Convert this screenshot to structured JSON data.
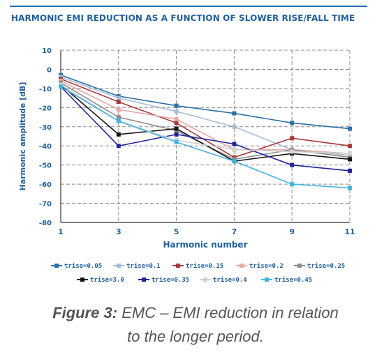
{
  "chart_data": {
    "type": "line",
    "title": "HARMONIC EMI REDUCTION AS A FUNCTION OF SLOWER RISE/FALL TIME",
    "xlabel": "Harmonic number",
    "ylabel": "Harmonic amplitude [dB]",
    "x": [
      1,
      3,
      5,
      7,
      9,
      11
    ],
    "x_ticks": [
      "1",
      "3",
      "5",
      "7",
      "9",
      "11"
    ],
    "xlim": [
      1,
      11
    ],
    "ylim": [
      -80,
      10
    ],
    "y_ticks": [
      "10",
      "0",
      "-10",
      "-20",
      "-30",
      "-40",
      "-50",
      "-60",
      "-70",
      "-80"
    ],
    "grid": true,
    "legend_position": "bottom",
    "series": [
      {
        "name": "trise=0.05",
        "color": "#2e6fa5",
        "values": [
          -3,
          -14,
          -19,
          -23,
          -28,
          -31
        ]
      },
      {
        "name": "trise=0.1",
        "color": "#a9bdd6",
        "values": [
          -4,
          -15,
          -22,
          -30,
          -42,
          -45
        ]
      },
      {
        "name": "trise=0.15",
        "color": "#a83a3a",
        "values": [
          -5,
          -17,
          -28,
          -46,
          -36,
          -40
        ]
      },
      {
        "name": "trise=0.2",
        "color": "#e5aaa5",
        "values": [
          -6,
          -21,
          -26,
          -42,
          -42,
          -44
        ]
      },
      {
        "name": "trise=0.25",
        "color": "#8d8d8d",
        "values": [
          -7,
          -25,
          -32,
          -47,
          -42,
          -46
        ]
      },
      {
        "name": "trise=3.0",
        "color": "#151515",
        "values": [
          -8,
          -34,
          -31,
          -48,
          -44,
          -47
        ]
      },
      {
        "name": "trise=0.35",
        "color": "#24249a",
        "values": [
          -9,
          -40,
          -34,
          -39,
          -50,
          -53
        ]
      },
      {
        "name": "trise=0.4",
        "color": "#d2d2d2",
        "values": [
          -8,
          -27,
          -37,
          -42,
          -43,
          -44
        ]
      },
      {
        "name": "trise=0.45",
        "color": "#41b3df",
        "values": [
          -9,
          -27,
          -38,
          -48,
          -60,
          -62
        ]
      }
    ]
  },
  "caption": {
    "label": "Figure 3:",
    "line1": " EMC – EMI reduction in relation",
    "line2": "to the longer period."
  }
}
